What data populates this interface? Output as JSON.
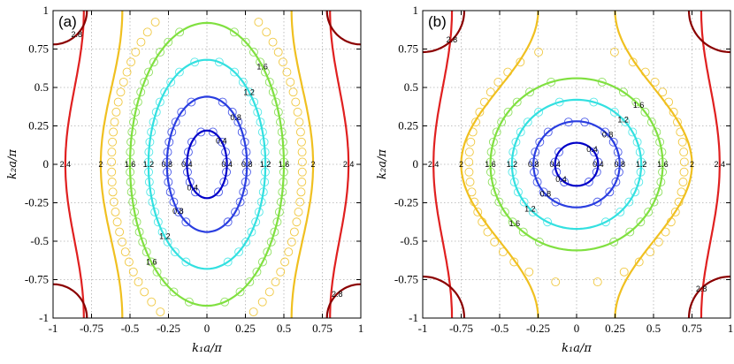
{
  "chart_data": [
    {
      "type": "contour",
      "panel_label": "(a)",
      "xlabel": "k₁a/π",
      "ylabel": "k₂a/π",
      "xlim": [
        -1,
        1
      ],
      "ylim": [
        -1,
        1
      ],
      "xticks": [
        "-1",
        "-0.75",
        "-0.5",
        "-0.25",
        "0",
        "0.25",
        "0.5",
        "0.75",
        "1"
      ],
      "yticks": [
        "-1",
        "-0.75",
        "-0.5",
        "-0.25",
        "0",
        "0.25",
        "0.5",
        "0.75",
        "1"
      ],
      "grid": true,
      "levels": [
        {
          "value": 0.4,
          "label": "0.4",
          "color": "#0000c8",
          "shape": "ellipse",
          "a": 0.13,
          "b": 0.22
        },
        {
          "value": 0.8,
          "label": "0.8",
          "color": "#2a3ee0",
          "shape": "ellipse",
          "a": 0.26,
          "b": 0.44
        },
        {
          "value": 1.2,
          "label": "1.2",
          "color": "#33e0e0",
          "shape": "ellipse",
          "a": 0.38,
          "b": 0.68
        },
        {
          "value": 1.6,
          "label": "1.6",
          "color": "#80e040",
          "shape": "ellipse",
          "a": 0.5,
          "b": 0.92
        },
        {
          "value": 2.0,
          "label": "2",
          "color": "#f0c020",
          "shape": "wave",
          "center": 0.62,
          "amp": 0.07,
          "edge": 0.1
        },
        {
          "value": 2.4,
          "label": "2.4",
          "color": "#e02020",
          "shape": "wave",
          "center": 0.86,
          "amp": 0.06,
          "edge": 0.08
        },
        {
          "value": 2.8,
          "label": "2.8",
          "color": "#8b0000",
          "shape": "corner",
          "r": 0.22
        }
      ],
      "markers": [
        {
          "color": "#4a5ae8",
          "a": 0.13,
          "b": 0.22
        },
        {
          "color": "#4a5ae8",
          "a": 0.26,
          "b": 0.44
        },
        {
          "color": "#55e8e8",
          "a": 0.38,
          "b": 0.68
        },
        {
          "color": "#90e060",
          "a": 0.5,
          "b": 0.92
        },
        {
          "color": "#f0c840",
          "a": 0.62,
          "b": 1.1
        }
      ]
    },
    {
      "type": "contour",
      "panel_label": "(b)",
      "xlabel": "k₁a/π",
      "ylabel": "k₂a/π",
      "xlim": [
        -1,
        1
      ],
      "ylim": [
        -1,
        1
      ],
      "xticks": [
        "-1",
        "-0.75",
        "-0.5",
        "-0.25",
        "0",
        "0.25",
        "0.5",
        "0.75",
        "1"
      ],
      "yticks": [
        "-1",
        "-0.75",
        "-0.5",
        "-0.25",
        "0",
        "0.25",
        "0.5",
        "0.75",
        "1"
      ],
      "grid": true,
      "levels": [
        {
          "value": 0.4,
          "label": "0.4",
          "color": "#0000c8",
          "shape": "ellipse",
          "a": 0.14,
          "b": 0.14
        },
        {
          "value": 0.8,
          "label": "0.8",
          "color": "#2a3ee0",
          "shape": "ellipse",
          "a": 0.28,
          "b": 0.28
        },
        {
          "value": 1.2,
          "label": "1.2",
          "color": "#33e0e0",
          "shape": "ellipse",
          "a": 0.42,
          "b": 0.42
        },
        {
          "value": 1.6,
          "label": "1.6",
          "color": "#80e040",
          "shape": "ellipse",
          "a": 0.56,
          "b": 0.56
        },
        {
          "value": 2.0,
          "label": "2",
          "color": "#f0c020",
          "shape": "wave",
          "center": 0.5,
          "amp": 0.25,
          "edge": 0.25
        },
        {
          "value": 2.4,
          "label": "2.4",
          "color": "#e02020",
          "shape": "wave",
          "center": 0.87,
          "amp": 0.06,
          "edge": 0.07
        },
        {
          "value": 2.8,
          "label": "2.8",
          "color": "#8b0000",
          "shape": "corner",
          "r": 0.27
        }
      ],
      "markers": [
        {
          "color": "#4a5ae8",
          "a": 0.14,
          "b": 0.14
        },
        {
          "color": "#4a5ae8",
          "a": 0.28,
          "b": 0.28
        },
        {
          "color": "#55e8e8",
          "a": 0.42,
          "b": 0.42
        },
        {
          "color": "#90e060",
          "a": 0.56,
          "b": 0.56
        },
        {
          "color": "#f0c840",
          "a": 0.7,
          "b": 0.78
        }
      ]
    }
  ]
}
